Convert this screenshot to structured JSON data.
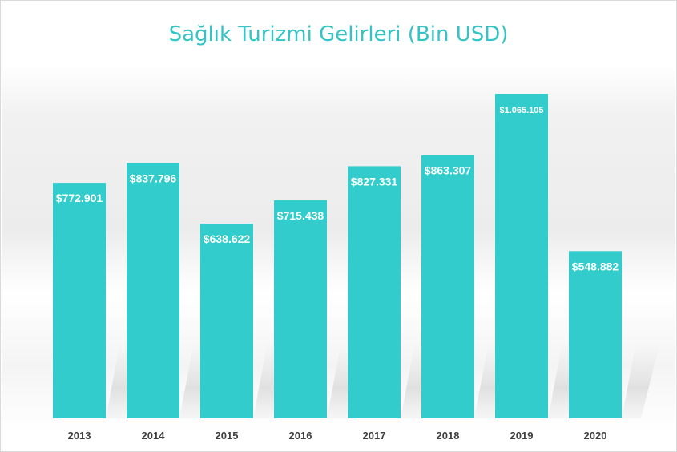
{
  "chart_data": {
    "type": "bar",
    "title": "Sağlık Turizmi Gelirleri (Bin USD)",
    "xlabel": "",
    "ylabel": "",
    "categories": [
      "2013",
      "2014",
      "2015",
      "2016",
      "2017",
      "2018",
      "2019",
      "2020"
    ],
    "values": [
      772901,
      837796,
      638622,
      715438,
      827331,
      863307,
      1065105,
      548882
    ],
    "data_labels": [
      "$772.901",
      "$837.796",
      "$638.622",
      "$715.438",
      "$827.331",
      "$863.307",
      "$1.065.105",
      "$548.882"
    ],
    "ylim": [
      0,
      1065105
    ],
    "grid": false,
    "legend": "none",
    "bar_color": "#33cccc",
    "title_color": "#33c4c8"
  }
}
